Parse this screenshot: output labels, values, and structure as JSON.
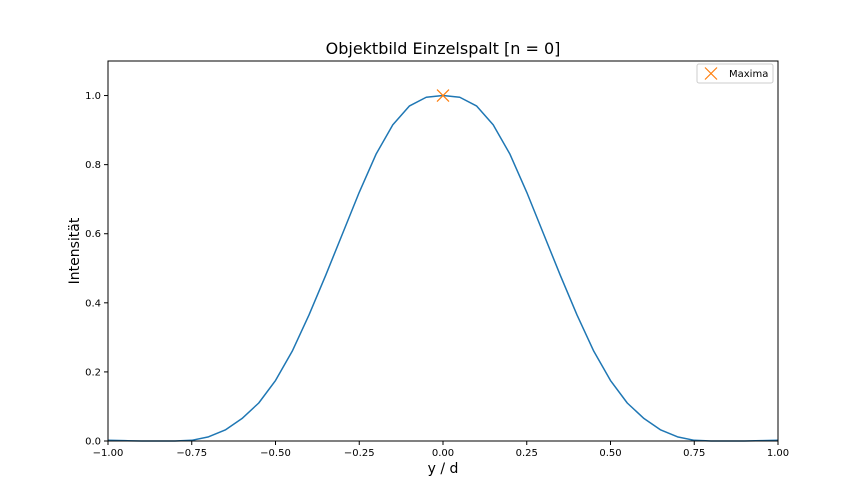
{
  "chart_data": {
    "type": "line",
    "title": "Objektbild Einzelspalt [n = 0]",
    "xlabel": "y / d",
    "ylabel": "Intensität",
    "xlim": [
      -1.0,
      1.0
    ],
    "ylim": [
      0.0,
      1.1
    ],
    "xticks": [
      -1.0,
      -0.75,
      -0.5,
      -0.25,
      0.0,
      0.25,
      0.5,
      0.75,
      1.0
    ],
    "xtick_labels": [
      "−1.00",
      "−0.75",
      "−0.50",
      "−0.25",
      "0.00",
      "0.25",
      "0.50",
      "0.75",
      "1.00"
    ],
    "yticks": [
      0.0,
      0.2,
      0.4,
      0.6,
      0.8,
      1.0
    ],
    "ytick_labels": [
      "0.0",
      "0.2",
      "0.4",
      "0.6",
      "0.8",
      "1.0"
    ],
    "grid": false,
    "legend_position": "top-right",
    "series": [
      {
        "kind": "line",
        "color": "#1f77b4",
        "x": [
          -1.0,
          -0.95,
          -0.9,
          -0.85,
          -0.8,
          -0.75,
          -0.7,
          -0.65,
          -0.6,
          -0.55,
          -0.5,
          -0.45,
          -0.4,
          -0.35,
          -0.3,
          -0.25,
          -0.2,
          -0.15,
          -0.1,
          -0.05,
          0.0,
          0.05,
          0.1,
          0.15,
          0.2,
          0.25,
          0.3,
          0.35,
          0.4,
          0.45,
          0.5,
          0.55,
          0.6,
          0.65,
          0.7,
          0.75,
          0.8,
          0.85,
          0.9,
          0.95,
          1.0
        ],
        "y": [
          0.002,
          0.001,
          0.0,
          0.0,
          0.0,
          0.002,
          0.012,
          0.032,
          0.065,
          0.11,
          0.175,
          0.26,
          0.365,
          0.48,
          0.6,
          0.72,
          0.83,
          0.915,
          0.97,
          0.995,
          1.0,
          0.995,
          0.97,
          0.915,
          0.83,
          0.72,
          0.6,
          0.48,
          0.365,
          0.26,
          0.175,
          0.11,
          0.065,
          0.032,
          0.012,
          0.002,
          0.0,
          0.0,
          0.0,
          0.001,
          0.002
        ]
      },
      {
        "name": "Maxima",
        "kind": "marker",
        "marker": "x",
        "color": "#ff7f0e",
        "x": [
          0.0
        ],
        "y": [
          1.0
        ]
      }
    ]
  }
}
